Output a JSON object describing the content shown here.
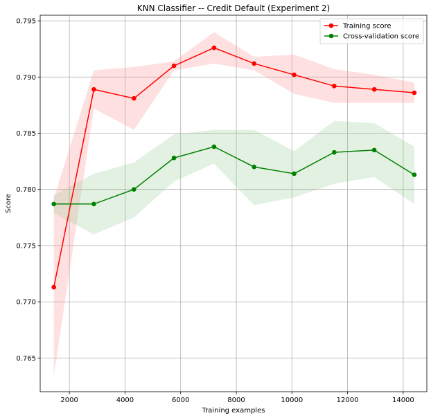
{
  "chart_data": {
    "type": "line",
    "title": "KNN Classifier -- Credit Default (Experiment 2)",
    "xlabel": "Training examples",
    "ylabel": "Score",
    "xlim": [
      950,
      14850
    ],
    "ylim": [
      0.762,
      0.7955
    ],
    "x_ticks": [
      2000,
      4000,
      6000,
      8000,
      10000,
      12000,
      14000
    ],
    "y_ticks": [
      0.765,
      0.77,
      0.775,
      0.78,
      0.785,
      0.79,
      0.795
    ],
    "y_tick_labels": [
      "0.765",
      "0.770",
      "0.775",
      "0.780",
      "0.785",
      "0.790",
      "0.795"
    ],
    "grid": true,
    "legend_position": "top-right",
    "x": [
      1440,
      2880,
      4320,
      5760,
      7200,
      8640,
      10080,
      11520,
      12960,
      14400
    ],
    "series": [
      {
        "name": "Training score",
        "color": "#ff0000",
        "band_color": "#ff9999",
        "values": [
          0.7713,
          0.7889,
          0.7881,
          0.791,
          0.7926,
          0.7912,
          0.7902,
          0.7892,
          0.7889,
          0.7886
        ],
        "upper": [
          0.7792,
          0.7906,
          0.7909,
          0.7914,
          0.794,
          0.7918,
          0.792,
          0.7907,
          0.7902,
          0.7895
        ],
        "lower": [
          0.7634,
          0.7872,
          0.7853,
          0.7906,
          0.7912,
          0.7906,
          0.7885,
          0.7877,
          0.7877,
          0.7877
        ]
      },
      {
        "name": "Cross-validation score",
        "color": "#008000",
        "band_color": "#8fc98f",
        "values": [
          0.7787,
          0.7787,
          0.78,
          0.7828,
          0.7838,
          0.782,
          0.7814,
          0.7833,
          0.7835,
          0.7813
        ],
        "upper": [
          0.7795,
          0.7814,
          0.7824,
          0.7849,
          0.7853,
          0.7853,
          0.7834,
          0.7861,
          0.7859,
          0.7838
        ],
        "lower": [
          0.7779,
          0.776,
          0.7775,
          0.7807,
          0.7823,
          0.7786,
          0.7793,
          0.7805,
          0.7811,
          0.7787
        ]
      }
    ]
  }
}
